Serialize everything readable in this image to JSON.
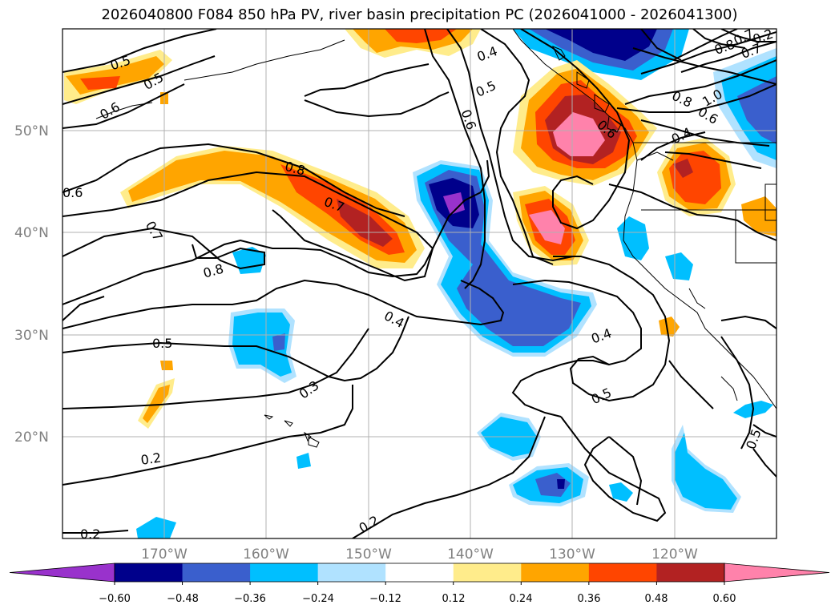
{
  "title": "2026040800 F084 850 hPa PV, river basin precipitation PC (2026041000 - 2026041300)",
  "lat_labels": [
    "50°N",
    "40°N",
    "30°N",
    "20°N"
  ],
  "lon_labels": [
    "170°W",
    "160°W",
    "150°W",
    "140°W",
    "130°W",
    "120°W"
  ],
  "contour_labels": [
    "0.5",
    "0.5",
    "0.6",
    "0.6",
    "0.7",
    "0.8",
    "0.8",
    "0.7",
    "0.6",
    "0.5",
    "0.4",
    "0.5",
    "0.4",
    "0.3",
    "0.5",
    "0.2",
    "0.2",
    "0.2",
    "0.4",
    "0.5",
    "0.4",
    "0.6",
    "0.8",
    "1.0",
    "0.6",
    "0.8",
    "0.7",
    "0.2",
    "0.7"
  ],
  "colorbar": {
    "ticks": [
      "−0.60",
      "−0.48",
      "−0.36",
      "−0.24",
      "−0.12",
      "0.12",
      "0.24",
      "0.36",
      "0.48",
      "0.60"
    ],
    "colors": [
      "#9932cc",
      "#00008b",
      "#3a5fcd",
      "#00bfff",
      "#b0e2ff",
      "#ffffff",
      "#ffec8b",
      "#ffa500",
      "#ff4500",
      "#b22222",
      "#ff82ab"
    ]
  },
  "colors": {
    "strong_negative": "#9932cc",
    "dark_blue": "#00008b",
    "royal_blue": "#3a5fcd",
    "deep_sky": "#00bfff",
    "light_sky": "#b0e2ff",
    "light_yellow": "#ffec8b",
    "orange": "#ffa500",
    "orange_red": "#ff4500",
    "firebrick": "#b22222",
    "pink": "#ff82ab"
  }
}
